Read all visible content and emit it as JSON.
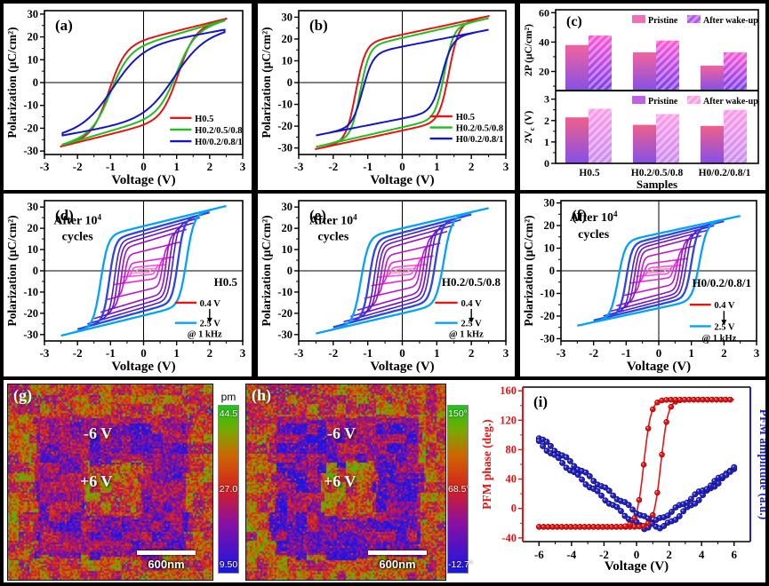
{
  "figure": {
    "bg": "#000000"
  },
  "chart_data": {
    "panel_a": {
      "type": "pv_loops",
      "label": "(a)",
      "xlabel": "Voltage (V)",
      "ylabel": "Polarization (μC/cm²)",
      "xlim": [
        -3,
        3
      ],
      "ylim": [
        -31.5,
        31.5
      ],
      "xticks": [
        -3,
        -2,
        -1,
        0,
        1,
        2,
        3
      ],
      "yticks": [
        -30,
        -20,
        -10,
        0,
        10,
        20,
        30
      ],
      "series": [
        {
          "name": "H0.5",
          "color": "#e81313",
          "Vmax": 2.5,
          "A": 19,
          "Vc": 1.05,
          "w": 0.5,
          "B": 3.6
        },
        {
          "name": "H0.2/0.5/0.8",
          "color": "#1fbf1f",
          "Vmax": 2.45,
          "A": 17,
          "Vc": 1.0,
          "w": 0.55,
          "B": 4.2
        },
        {
          "name": "H0/0.2/0.8/1",
          "color": "#1414cc",
          "Vmax": 2.45,
          "A": 16.8,
          "Vc": 0.93,
          "w": 0.9,
          "B": 2.6
        }
      ]
    },
    "panel_b": {
      "type": "pv_loops",
      "label": "(b)",
      "xlabel": "Voltage (V)",
      "ylabel": "Polarization (μC/cm²)",
      "xlim": [
        -3,
        3
      ],
      "ylim": [
        -33,
        33
      ],
      "xticks": [
        -3,
        -2,
        -1,
        0,
        1,
        2,
        3
      ],
      "yticks": [
        -30,
        -20,
        -10,
        0,
        10,
        20,
        30
      ],
      "series": [
        {
          "name": "H0.5",
          "color": "#e81313",
          "Vmax": 2.5,
          "A": 22,
          "Vc": 1.35,
          "w": 0.28,
          "B": 3.4
        },
        {
          "name": "H0.2/0.5/0.8",
          "color": "#1fbf1f",
          "Vmax": 2.5,
          "A": 20.5,
          "Vc": 1.22,
          "w": 0.26,
          "B": 3.6
        },
        {
          "name": "H0/0.2/0.8/1",
          "color": "#1414cc",
          "Vmax": 2.5,
          "A": 16.5,
          "Vc": 1.15,
          "w": 0.3,
          "B": 3.1
        }
      ]
    },
    "panel_c": {
      "type": "bars",
      "label": "(c)",
      "xlabel": "Samples",
      "categories": [
        "H0.5",
        "H0.2/0.5/0.8",
        "H0/0.2/0.8/1"
      ],
      "top": {
        "ylabel": "2P (μC/cm²)",
        "ylim": [
          7,
          62
        ],
        "yticks": [
          20,
          40,
          60
        ],
        "yminor": [
          10,
          30,
          50
        ],
        "legend": [
          "Pristine",
          "After wake-up"
        ],
        "legend_colors": [
          "#f06fb8",
          "#b455ee"
        ],
        "series": [
          {
            "name": "Pristine",
            "values": [
              38,
              33,
              24
            ],
            "grad": [
              "#f2639b",
              "#8550e8"
            ],
            "hatch": false
          },
          {
            "name": "After wake-up",
            "values": [
              44.5,
              41,
              33
            ],
            "grad": [
              "#ff57d4",
              "#7b3bf0"
            ],
            "hatch": true
          }
        ]
      },
      "bottom": {
        "ylabel_pre": "2V",
        "ylabel_sub": "c",
        "ylabel_post": " (V)",
        "ylim": [
          0,
          3.4
        ],
        "yticks": [
          0,
          1,
          2,
          3
        ],
        "yminor": [
          0.5,
          1.5,
          2.5
        ],
        "legend": [
          "Pristine",
          "After wake-up"
        ],
        "legend_colors": [
          "#c45fe8",
          "#ff9ae4"
        ],
        "series": [
          {
            "name": "Pristine",
            "values": [
              2.15,
              1.8,
              1.75
            ],
            "grad": [
              "#f0608a",
              "#8550e8"
            ],
            "hatch": false
          },
          {
            "name": "After wake-up",
            "values": [
              2.55,
              2.3,
              2.5
            ],
            "grad": [
              "#ff9ae6",
              "#c98bf2"
            ],
            "hatch": true
          }
        ]
      }
    },
    "panel_d": {
      "type": "fatigue",
      "label": "(d)",
      "sample": "H0.5",
      "note1": "After 10",
      "note1_sup": "4",
      "note2": "cycles",
      "legend_min": "0.4 V",
      "legend_max": "2.5 V",
      "legend_freq": "@ 1 kHz",
      "legend_min_color": "#e81313",
      "legend_max_color": "#00a2ff",
      "xlabel": "Voltage (V)",
      "ylabel": "Polarization (μC/cm²)",
      "xlim": [
        -3,
        3
      ],
      "ylim": [
        -33,
        33
      ],
      "xticks": [
        -3,
        -2,
        -1,
        0,
        1,
        2,
        3
      ],
      "yticks": [
        -30,
        -20,
        -10,
        0,
        10,
        20,
        30
      ],
      "major": {
        "A": 21,
        "Vc": 1.3,
        "w": 0.22,
        "B": 3.8,
        "Vmax": 2.5,
        "Pmax": 30.5
      },
      "tips": [
        [
          0.4,
          1.2
        ],
        [
          0.7,
          3
        ],
        [
          0.9,
          6.5
        ],
        [
          1.1,
          13.5
        ],
        [
          1.3,
          19.5
        ],
        [
          1.5,
          22.5
        ],
        [
          1.7,
          25
        ],
        [
          2.0,
          27.5
        ],
        [
          2.5,
          30.5
        ]
      ],
      "loop_colors": [
        "#ff8fd8",
        "#ff4fd8",
        "#ee22dd",
        "#c414d2",
        "#9711c8",
        "#6d14cc",
        "#4a1fd8",
        "#2b46e8",
        "#00a2ff"
      ]
    },
    "panel_e": {
      "type": "fatigue",
      "label": "(e)",
      "sample": "H0.2/0.5/0.8",
      "note1": "After 10",
      "note1_sup": "4",
      "note2": "cycles",
      "legend_min": "0.4 V",
      "legend_max": "2.5 V",
      "legend_freq": "@ 1 kHz",
      "legend_min_color": "#e81313",
      "legend_max_color": "#00a2ff",
      "xlabel": "Voltage (V)",
      "ylabel": "Polarization (μC/cm²)",
      "xlim": [
        -3,
        3
      ],
      "ylim": [
        -33,
        33
      ],
      "xticks": [
        -3,
        -2,
        -1,
        0,
        1,
        2,
        3
      ],
      "yticks": [
        -30,
        -20,
        -10,
        0,
        10,
        20,
        30
      ],
      "major": {
        "A": 20,
        "Vc": 1.2,
        "w": 0.22,
        "B": 3.8,
        "Vmax": 2.5,
        "Pmax": 29.5
      },
      "tips": [
        [
          0.4,
          1.2
        ],
        [
          0.7,
          3
        ],
        [
          0.9,
          7
        ],
        [
          1.1,
          13
        ],
        [
          1.3,
          18.5
        ],
        [
          1.5,
          21.5
        ],
        [
          1.7,
          24
        ],
        [
          2.0,
          26.5
        ],
        [
          2.5,
          29.5
        ]
      ],
      "loop_colors": [
        "#ff8fd8",
        "#ff4fd8",
        "#ee22dd",
        "#c414d2",
        "#9711c8",
        "#6d14cc",
        "#4a1fd8",
        "#2b46e8",
        "#00a2ff"
      ]
    },
    "panel_f": {
      "type": "fatigue",
      "label": "(f)",
      "sample": "H0/0.2/0.8/1",
      "note1": "After 10",
      "note1_sup": "4",
      "note2": "cycles",
      "legend_min": "0.4 V",
      "legend_max": "2.5 V",
      "legend_freq": "@ 1 kHz",
      "legend_min_color": "#e81313",
      "legend_max_color": "#00a2ff",
      "xlabel": "Voltage (V)",
      "ylabel": "Polarization (μC/cm²)",
      "xlim": [
        -3,
        3
      ],
      "ylim": [
        -31,
        31
      ],
      "xticks": [
        -3,
        -2,
        -1,
        0,
        1,
        2,
        3
      ],
      "yticks": [
        -30,
        -20,
        -10,
        0,
        10,
        20,
        30
      ],
      "major": {
        "A": 16.5,
        "Vc": 1.25,
        "w": 0.22,
        "B": 3.1,
        "Vmax": 2.5,
        "Pmax": 24.3
      },
      "tips": [
        [
          0.4,
          1.0
        ],
        [
          0.7,
          2.5
        ],
        [
          0.9,
          5.5
        ],
        [
          1.1,
          11
        ],
        [
          1.3,
          15.5
        ],
        [
          1.5,
          18
        ],
        [
          1.7,
          20
        ],
        [
          2.0,
          22
        ],
        [
          2.5,
          24.3
        ]
      ],
      "loop_colors": [
        "#ff8fd8",
        "#ff4fd8",
        "#ee22dd",
        "#c414d2",
        "#9711c8",
        "#6d14cc",
        "#4a1fd8",
        "#2b46e8",
        "#00a2ff"
      ]
    },
    "panel_g": {
      "type": "pfm_map",
      "label": "(g)",
      "cbar_header": "pm",
      "cbar_labels": [
        "44.5",
        "27.0",
        "9.50"
      ],
      "region_labels": [
        "-6 V",
        "+6 V"
      ],
      "scalebar": "600nm",
      "bg": 0.56,
      "mid": 0.27,
      "inner": 0.6,
      "seed": 7
    },
    "panel_h": {
      "type": "pfm_map",
      "label": "(h)",
      "cbar_header": "",
      "cbar_labels": [
        "150°",
        "68.5°",
        "-12.7°"
      ],
      "region_labels": [
        "-6 V",
        "+6 V"
      ],
      "scalebar": "600nm",
      "bg": 0.58,
      "mid": 0.24,
      "inner": 0.63,
      "seed": 13
    },
    "panel_i": {
      "type": "pfm_loops",
      "label": "(i)",
      "xlabel": "Voltage (V)",
      "ylabel_left": "PFM phase (deg.)",
      "ylabel_right": "PFM amplitude (a.u.)",
      "axis_left_color": "#e81313",
      "axis_right_color": "#2020cc",
      "xlim": [
        -7,
        7
      ],
      "ylim": [
        -45,
        165
      ],
      "xticks": [
        -6,
        -4,
        -2,
        0,
        2,
        4,
        6
      ],
      "yticks": [
        -40,
        0,
        40,
        80,
        120,
        160
      ],
      "phase": {
        "color": "#e81313",
        "low": -25,
        "high": 148,
        "up_center": 1.5,
        "down_center": 0.45,
        "width": 0.22
      },
      "amplitude": {
        "color": "#2222cc",
        "branches": [
          {
            "vmin": 1.55,
            "min": -27,
            "left": 97,
            "right": 55
          },
          {
            "vmin": 0.45,
            "min": -27,
            "left": 90,
            "right": 55
          }
        ]
      }
    },
    "pfm_colormap": [
      [
        0,
        "#1616e6"
      ],
      [
        0.3,
        "#8a10a0"
      ],
      [
        0.5,
        "#d42020"
      ],
      [
        0.7,
        "#cc6600"
      ],
      [
        0.85,
        "#7aa800"
      ],
      [
        1,
        "#18c818"
      ]
    ]
  }
}
